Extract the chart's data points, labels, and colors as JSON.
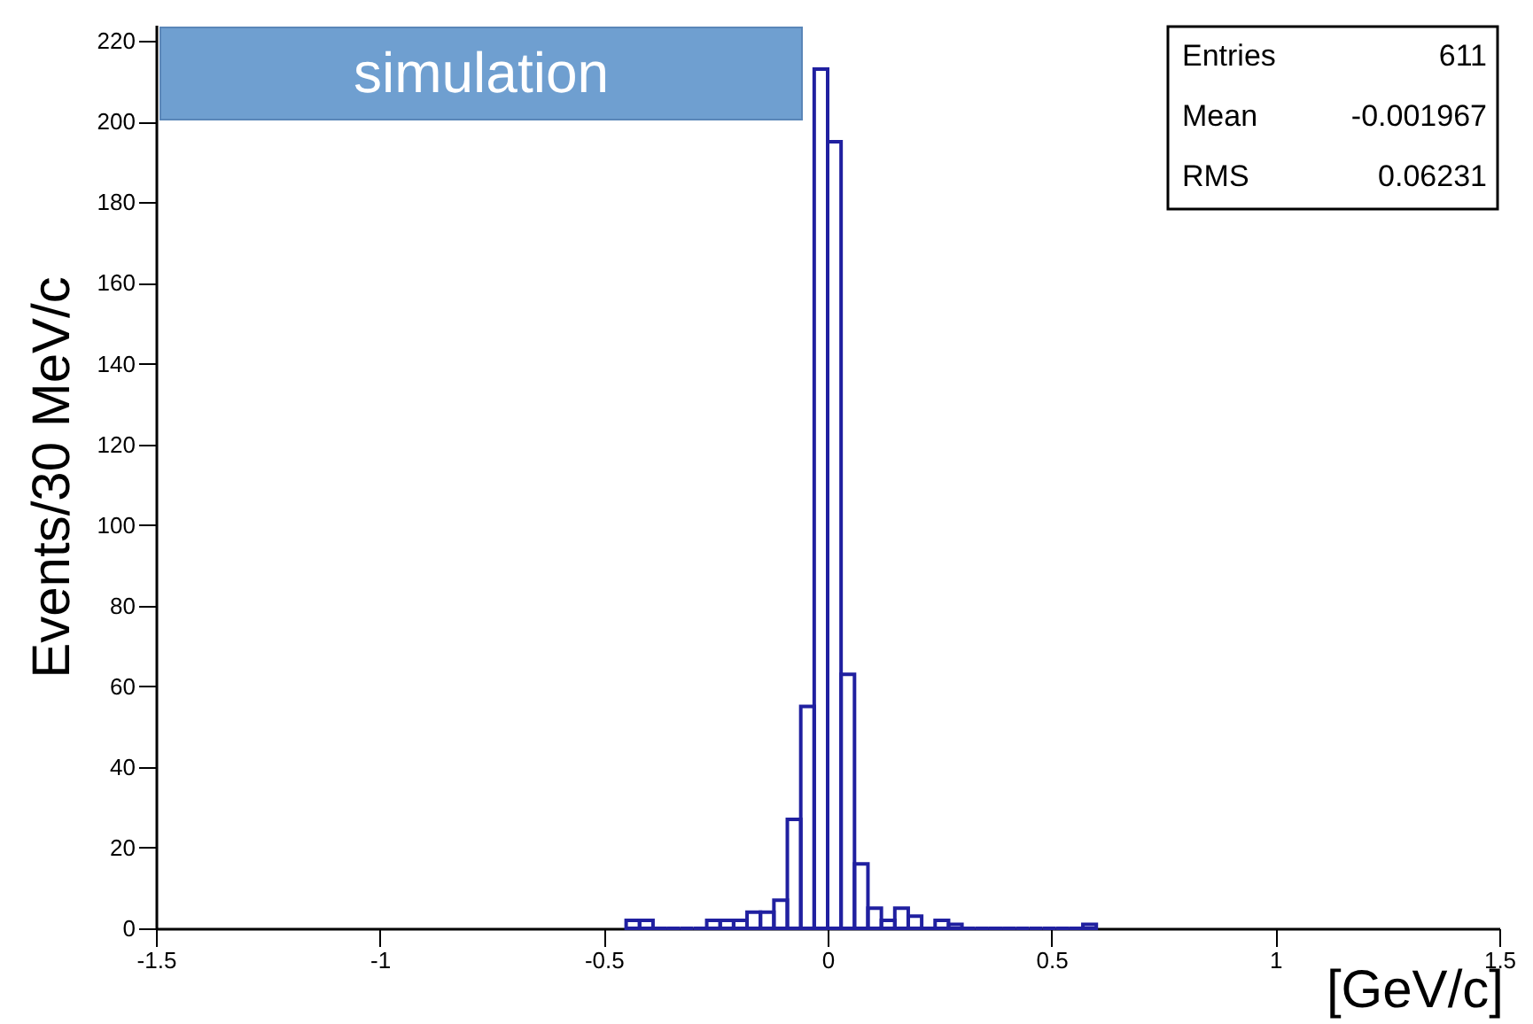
{
  "chart_data": {
    "type": "histogram",
    "xlabel": "[GeV/c]",
    "ylabel": "Events/30 MeV/c",
    "bins": [
      -0.45,
      -0.42,
      -0.39,
      -0.36,
      -0.33,
      -0.3,
      -0.27,
      -0.24,
      -0.21,
      -0.18,
      -0.15,
      -0.12,
      -0.09,
      -0.06,
      -0.03,
      0,
      0.03,
      0.06,
      0.09,
      0.12,
      0.15,
      0.18,
      0.21,
      0.24,
      0.27,
      0.3,
      0.33,
      0.36,
      0.39,
      0.42,
      0.45,
      0.48,
      0.51,
      0.54,
      0.57,
      0.6
    ],
    "values": [
      2,
      2,
      0,
      0,
      0,
      0,
      2,
      2,
      2,
      4,
      4,
      7,
      27,
      55,
      213,
      195,
      63,
      16,
      5,
      2,
      5,
      3,
      0,
      2,
      1,
      0,
      0,
      0,
      0,
      0,
      0,
      0,
      0,
      0,
      1
    ],
    "color": "#2020a0",
    "xlim": [
      -1.5,
      1.5
    ],
    "xticks": [
      -1.5,
      -1,
      -0.5,
      0,
      0.5,
      1,
      1.5
    ],
    "ylim": [
      0,
      224
    ],
    "yticks": [
      0,
      20,
      40,
      60,
      80,
      100,
      120,
      140,
      160,
      180,
      200,
      220
    ],
    "annotations": [
      "simulation",
      "Entries 611",
      "Mean -0.001967",
      "RMS 0.06231"
    ],
    "grid": false
  }
}
